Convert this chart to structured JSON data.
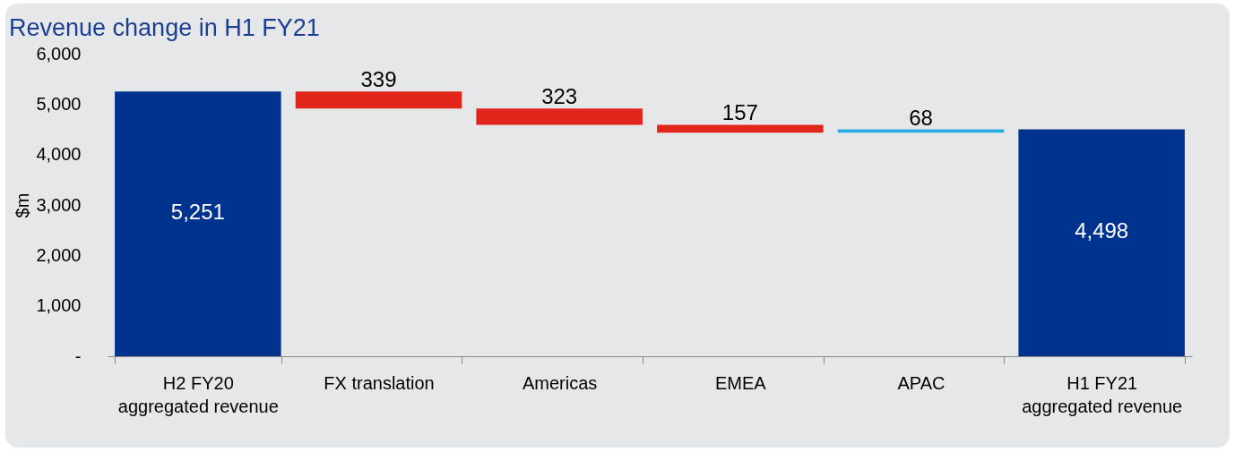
{
  "chart_data": {
    "type": "bar",
    "title": "Revenue change in H1 FY21",
    "ylabel": "$m",
    "categories": [
      "H2 FY20\naggregated revenue",
      "FX translation",
      "Americas",
      "EMEA",
      "APAC",
      "H1 FY21\naggregated revenue"
    ],
    "values": [
      5251,
      -339,
      -323,
      -157,
      68,
      4498
    ],
    "base": [
      0,
      5251,
      4912,
      4589,
      4432,
      0
    ],
    "colors": [
      "#00338d",
      "#e1251b",
      "#e1251b",
      "#e1251b",
      "#27a9e1",
      "#00338d"
    ],
    "value_labels": [
      "5,251",
      "339",
      "323",
      "157",
      "68",
      "4,498"
    ],
    "ylim": [
      0,
      6000
    ],
    "yticks": [
      {
        "value": 0,
        "label": "-"
      },
      {
        "value": 1000,
        "label": "1,000"
      },
      {
        "value": 2000,
        "label": "2,000"
      },
      {
        "value": 3000,
        "label": "3,000"
      },
      {
        "value": 4000,
        "label": "4,000"
      },
      {
        "value": 5000,
        "label": "5,000"
      },
      {
        "value": 6000,
        "label": "6,000"
      }
    ],
    "grid": false
  }
}
